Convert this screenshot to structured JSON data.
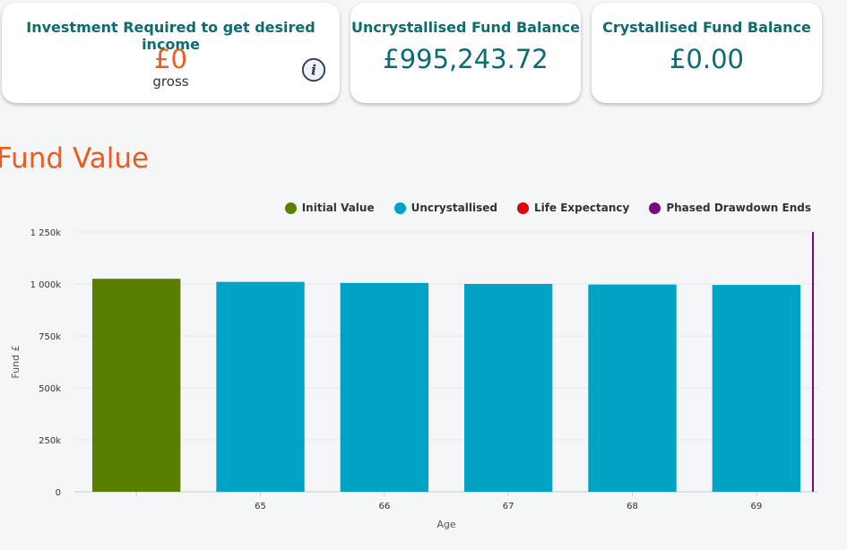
{
  "cards": [
    {
      "title": "Investment Required to get desired income",
      "value": "£0",
      "sub": "gross"
    },
    {
      "title": "Uncrystallised Fund Balance",
      "value": "£995,243.72"
    },
    {
      "title": "Crystallised Fund Balance",
      "value": "£0.00"
    }
  ],
  "section_title": "Fund Value",
  "colors": {
    "accent": "#ef5a1f",
    "teal": "#0d6b73",
    "initial": "#5a7f00",
    "uncrystallised": "#00a3c4",
    "life_expectancy": "#e00000",
    "phased_end": "#7a0a7a"
  },
  "legend": [
    {
      "label": "Initial Value",
      "color": "#5a7f00"
    },
    {
      "label": "Uncrystallised",
      "color": "#00a3c4"
    },
    {
      "label": "Life Expectancy",
      "color": "#e00000"
    },
    {
      "label": "Phased Drawdown Ends",
      "color": "#7a0a7a"
    }
  ],
  "chart_data": {
    "type": "bar",
    "categories": [
      "",
      "65",
      "66",
      "67",
      "68",
      "69"
    ],
    "series": [
      {
        "name": "Initial Value",
        "values": [
          1025000,
          null,
          null,
          null,
          null,
          null
        ]
      },
      {
        "name": "Uncrystallised",
        "values": [
          null,
          1010000,
          1005000,
          1000000,
          997000,
          995244
        ]
      }
    ],
    "markers": [
      {
        "name": "Phased Drawdown Ends",
        "after_category": "69"
      }
    ],
    "xlabel": "Age",
    "ylabel": "Fund £",
    "ylim": [
      0,
      1250000
    ],
    "yticks": [
      0,
      250000,
      500000,
      750000,
      1000000,
      1250000
    ],
    "ytick_labels": [
      "0",
      "250k",
      "500k",
      "750k",
      "1 000k",
      "1 250k"
    ],
    "grid": true,
    "legend_position": "top-right"
  }
}
